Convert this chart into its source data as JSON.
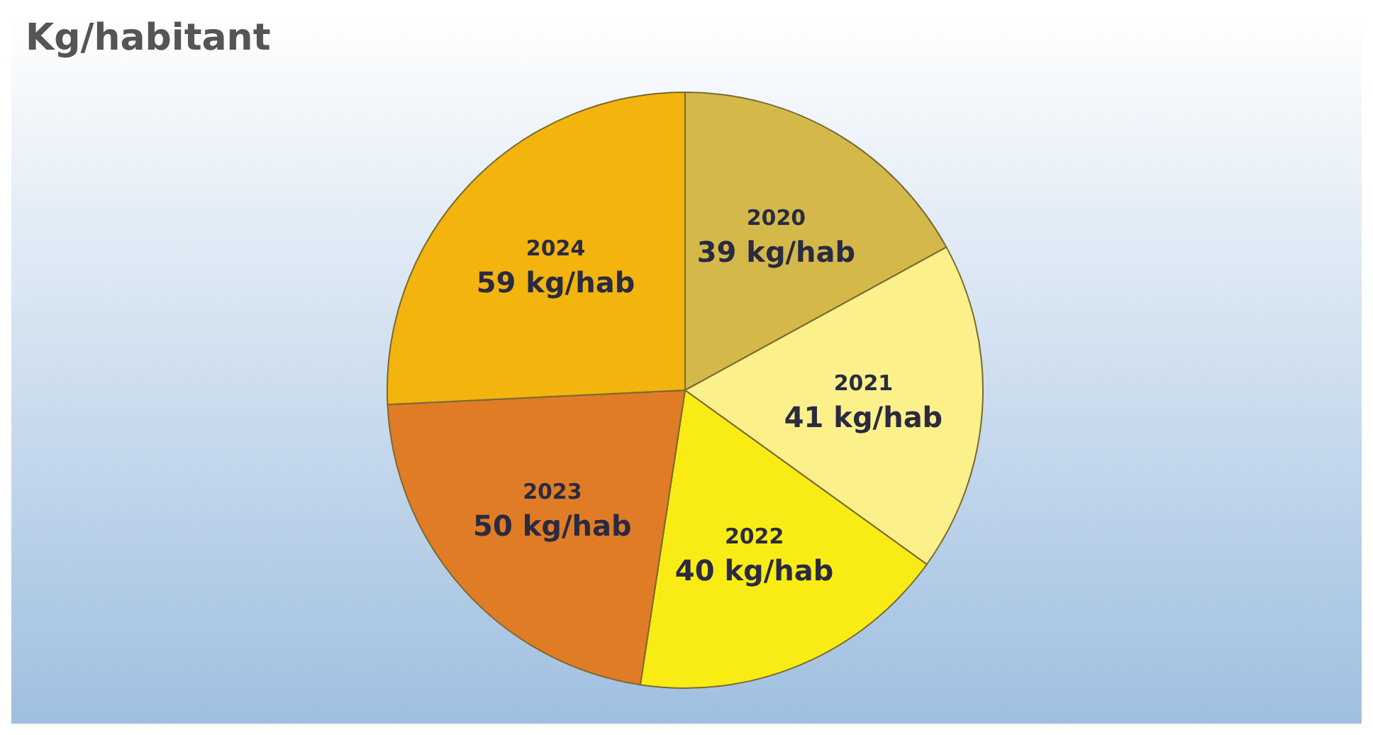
{
  "chart_data": {
    "type": "pie",
    "title": "Kg/habitant",
    "categories": [
      "2020",
      "2021",
      "2022",
      "2023",
      "2024"
    ],
    "values": [
      39,
      41,
      40,
      50,
      59
    ],
    "value_labels": [
      "39 kg/hab",
      "41 kg/hab",
      "40 kg/hab",
      "50 kg/hab",
      "59 kg/hab"
    ],
    "colors": [
      "#d4b94a",
      "#fbf08a",
      "#f9ec14",
      "#e07c26",
      "#f2b40d"
    ],
    "legend": false
  }
}
